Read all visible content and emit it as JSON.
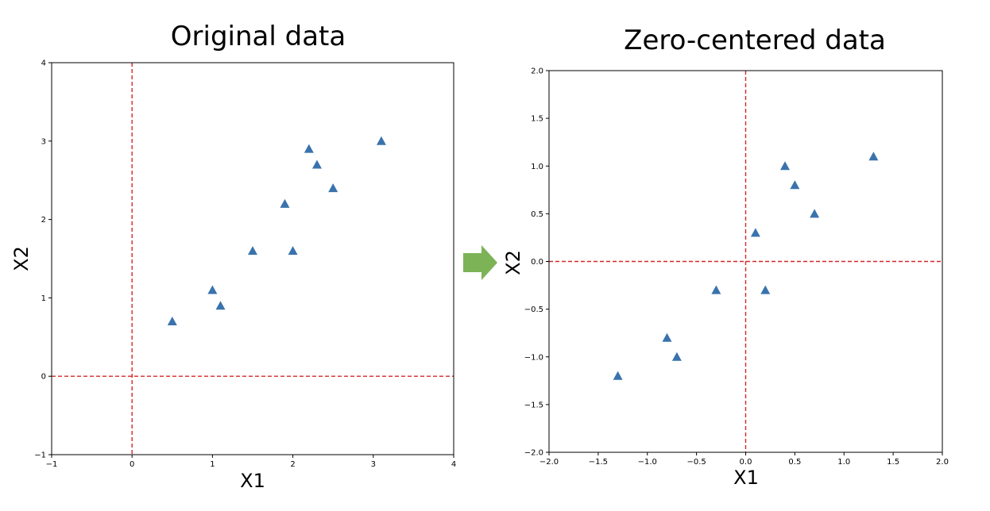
{
  "colors": {
    "marker": "#3a73ac",
    "reference_line": "#d62728",
    "arrow": "#7db357"
  },
  "arrow": {
    "icon": "right-arrow-icon"
  },
  "chart_data": [
    {
      "type": "scatter",
      "title": "Original data",
      "xlabel": "X1",
      "ylabel": "X2",
      "xlim": [
        -1,
        4
      ],
      "ylim": [
        -1,
        4
      ],
      "xticks": [
        "−1",
        "0",
        "1",
        "2",
        "3",
        "4"
      ],
      "yticks": [
        "−1",
        "0",
        "1",
        "2",
        "3",
        "4"
      ],
      "xtick_values": [
        -1,
        0,
        1,
        2,
        3,
        4
      ],
      "ytick_values": [
        -1,
        0,
        1,
        2,
        3,
        4
      ],
      "reference_lines": {
        "x": 0,
        "y": 0
      },
      "marker": "triangle",
      "grid": false,
      "points": [
        {
          "x": 0.5,
          "y": 0.7
        },
        {
          "x": 1.0,
          "y": 1.1
        },
        {
          "x": 1.1,
          "y": 0.9
        },
        {
          "x": 1.5,
          "y": 1.6
        },
        {
          "x": 1.9,
          "y": 2.2
        },
        {
          "x": 2.0,
          "y": 1.6
        },
        {
          "x": 2.2,
          "y": 2.9
        },
        {
          "x": 2.3,
          "y": 2.7
        },
        {
          "x": 2.5,
          "y": 2.4
        },
        {
          "x": 3.1,
          "y": 3.0
        }
      ]
    },
    {
      "type": "scatter",
      "title": "Zero-centered data",
      "xlabel": "X1",
      "ylabel": "X2",
      "xlim": [
        -2,
        2
      ],
      "ylim": [
        -2,
        2
      ],
      "xticks": [
        "−2.0",
        "−1.5",
        "−1.0",
        "−0.5",
        "0.0",
        "0.5",
        "1.0",
        "1.5",
        "2.0"
      ],
      "yticks": [
        "−2.0",
        "−1.5",
        "−1.0",
        "−0.5",
        "0.0",
        "0.5",
        "1.0",
        "1.5",
        "2.0"
      ],
      "xtick_values": [
        -2,
        -1.5,
        -1,
        -0.5,
        0,
        0.5,
        1,
        1.5,
        2
      ],
      "ytick_values": [
        -2,
        -1.5,
        -1,
        -0.5,
        0,
        0.5,
        1,
        1.5,
        2
      ],
      "reference_lines": {
        "x": 0,
        "y": 0
      },
      "marker": "triangle",
      "grid": false,
      "points": [
        {
          "x": -1.3,
          "y": -1.2
        },
        {
          "x": -0.8,
          "y": -0.8
        },
        {
          "x": -0.7,
          "y": -1.0
        },
        {
          "x": -0.3,
          "y": -0.3
        },
        {
          "x": 0.1,
          "y": 0.3
        },
        {
          "x": 0.2,
          "y": -0.3
        },
        {
          "x": 0.4,
          "y": 1.0
        },
        {
          "x": 0.5,
          "y": 0.8
        },
        {
          "x": 0.7,
          "y": 0.5
        },
        {
          "x": 1.3,
          "y": 1.1
        }
      ]
    }
  ]
}
